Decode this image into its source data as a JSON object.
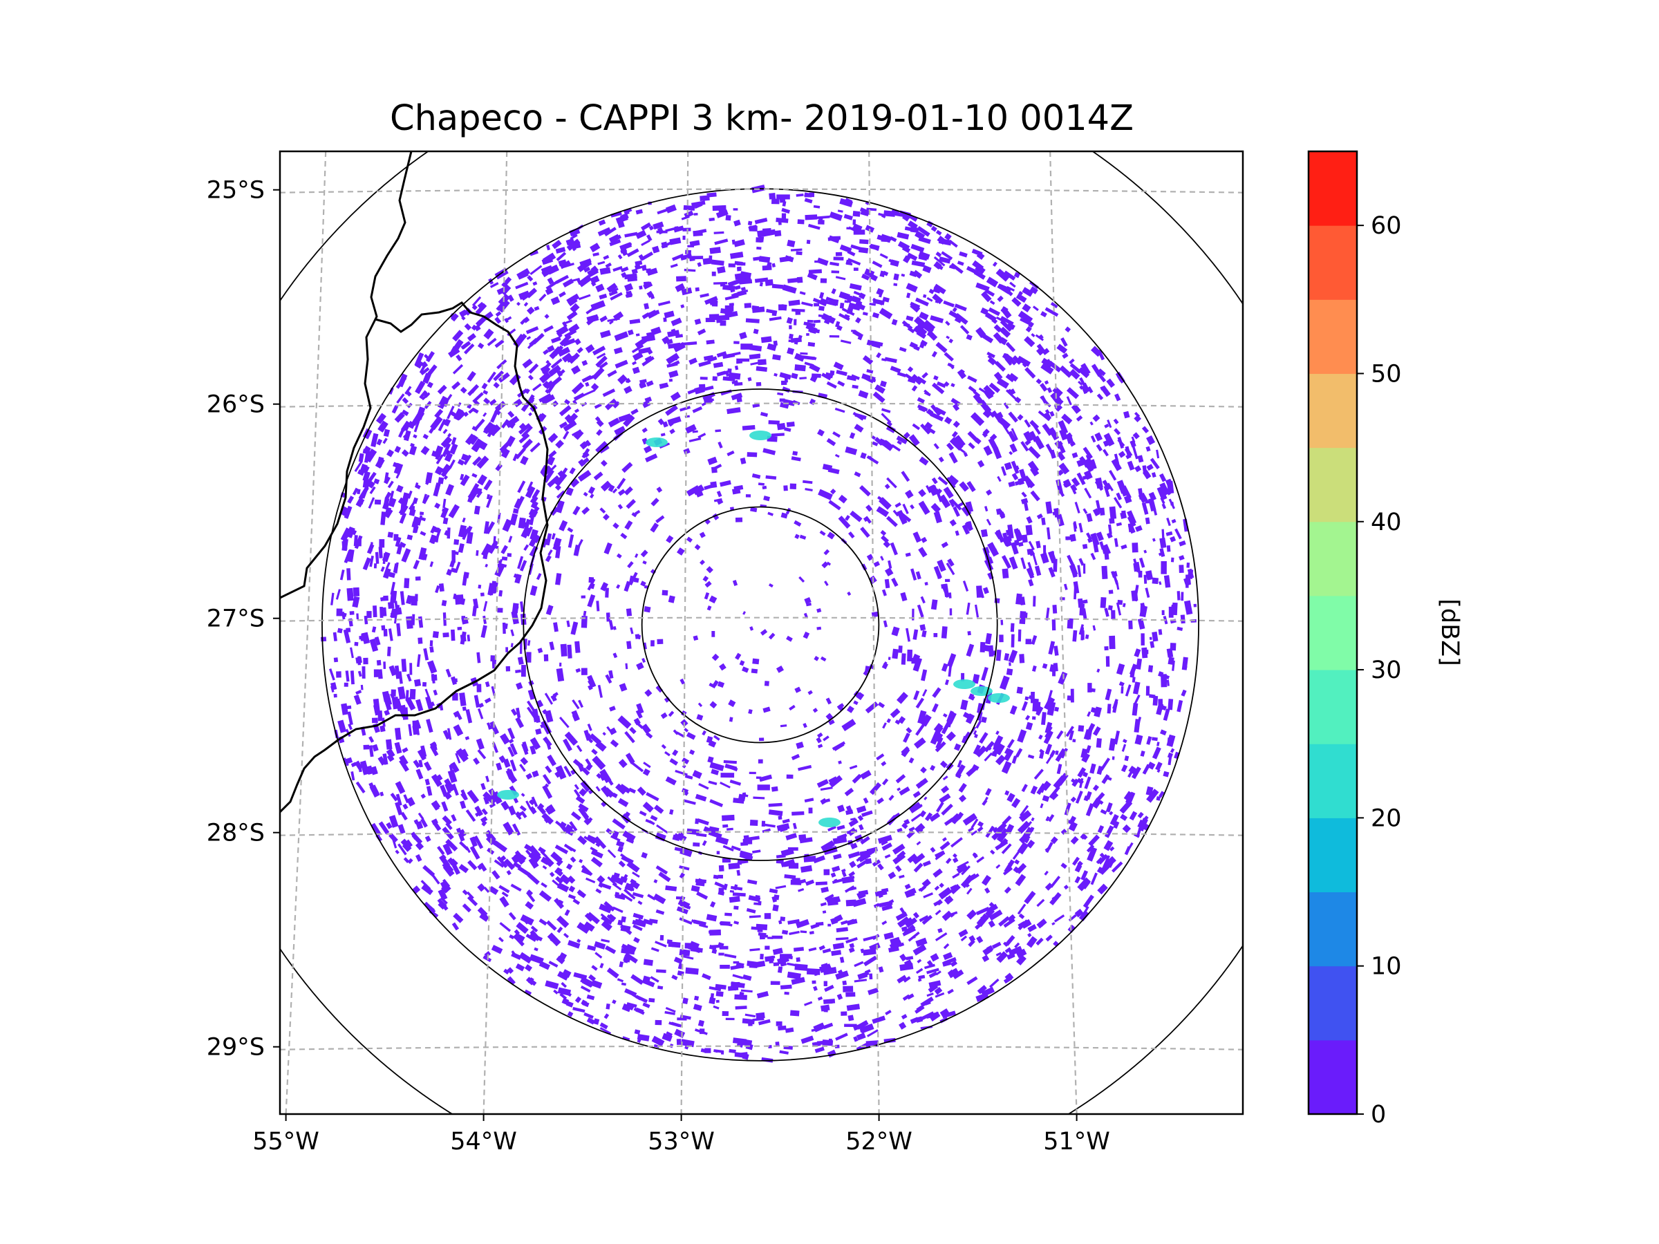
{
  "title": "Chapeco - CAPPI 3 km- 2019-01-10 0014Z",
  "x_ticks": [
    {
      "deg": -55,
      "label": "55°W"
    },
    {
      "deg": -54,
      "label": "54°W"
    },
    {
      "deg": -53,
      "label": "53°W"
    },
    {
      "deg": -52,
      "label": "52°W"
    },
    {
      "deg": -51,
      "label": "51°W"
    }
  ],
  "y_ticks": [
    {
      "deg": -25,
      "label": "25°S"
    },
    {
      "deg": -26,
      "label": "26°S"
    },
    {
      "deg": -27,
      "label": "27°S"
    },
    {
      "deg": -28,
      "label": "28°S"
    },
    {
      "deg": -29,
      "label": "29°S"
    }
  ],
  "colorbar": {
    "label": "[dBZ]",
    "min": 0,
    "max": 65,
    "ticks": [
      {
        "value": 0,
        "label": "0"
      },
      {
        "value": 10,
        "label": "10"
      },
      {
        "value": 20,
        "label": "20"
      },
      {
        "value": 30,
        "label": "30"
      },
      {
        "value": 40,
        "label": "40"
      },
      {
        "value": 50,
        "label": "50"
      },
      {
        "value": 60,
        "label": "60"
      }
    ],
    "bands": [
      {
        "from": 0,
        "to": 5,
        "color": "#6a1cfb"
      },
      {
        "from": 5,
        "to": 10,
        "color": "#4052f1"
      },
      {
        "from": 10,
        "to": 15,
        "color": "#1e88e6"
      },
      {
        "from": 15,
        "to": 20,
        "color": "#0fbbdc"
      },
      {
        "from": 20,
        "to": 25,
        "color": "#30ddd0"
      },
      {
        "from": 25,
        "to": 30,
        "color": "#52f0bf"
      },
      {
        "from": 30,
        "to": 35,
        "color": "#80fca8"
      },
      {
        "from": 35,
        "to": 40,
        "color": "#a3f590"
      },
      {
        "from": 40,
        "to": 45,
        "color": "#cbde7a"
      },
      {
        "from": 45,
        "to": 50,
        "color": "#f2bd6b"
      },
      {
        "from": 50,
        "to": 55,
        "color": "#ff8d50"
      },
      {
        "from": 55,
        "to": 60,
        "color": "#ff5a34"
      },
      {
        "from": 60,
        "to": 65,
        "color": "#ff1f14"
      }
    ]
  },
  "radar": {
    "center_lon": -52.6,
    "center_lat": -27.03,
    "range_rings_deg": [
      0.5,
      1.0,
      1.85,
      2.45
    ],
    "echo_color": "#6a1cfb",
    "strong_echo_color": "#30ddd0"
  }
}
